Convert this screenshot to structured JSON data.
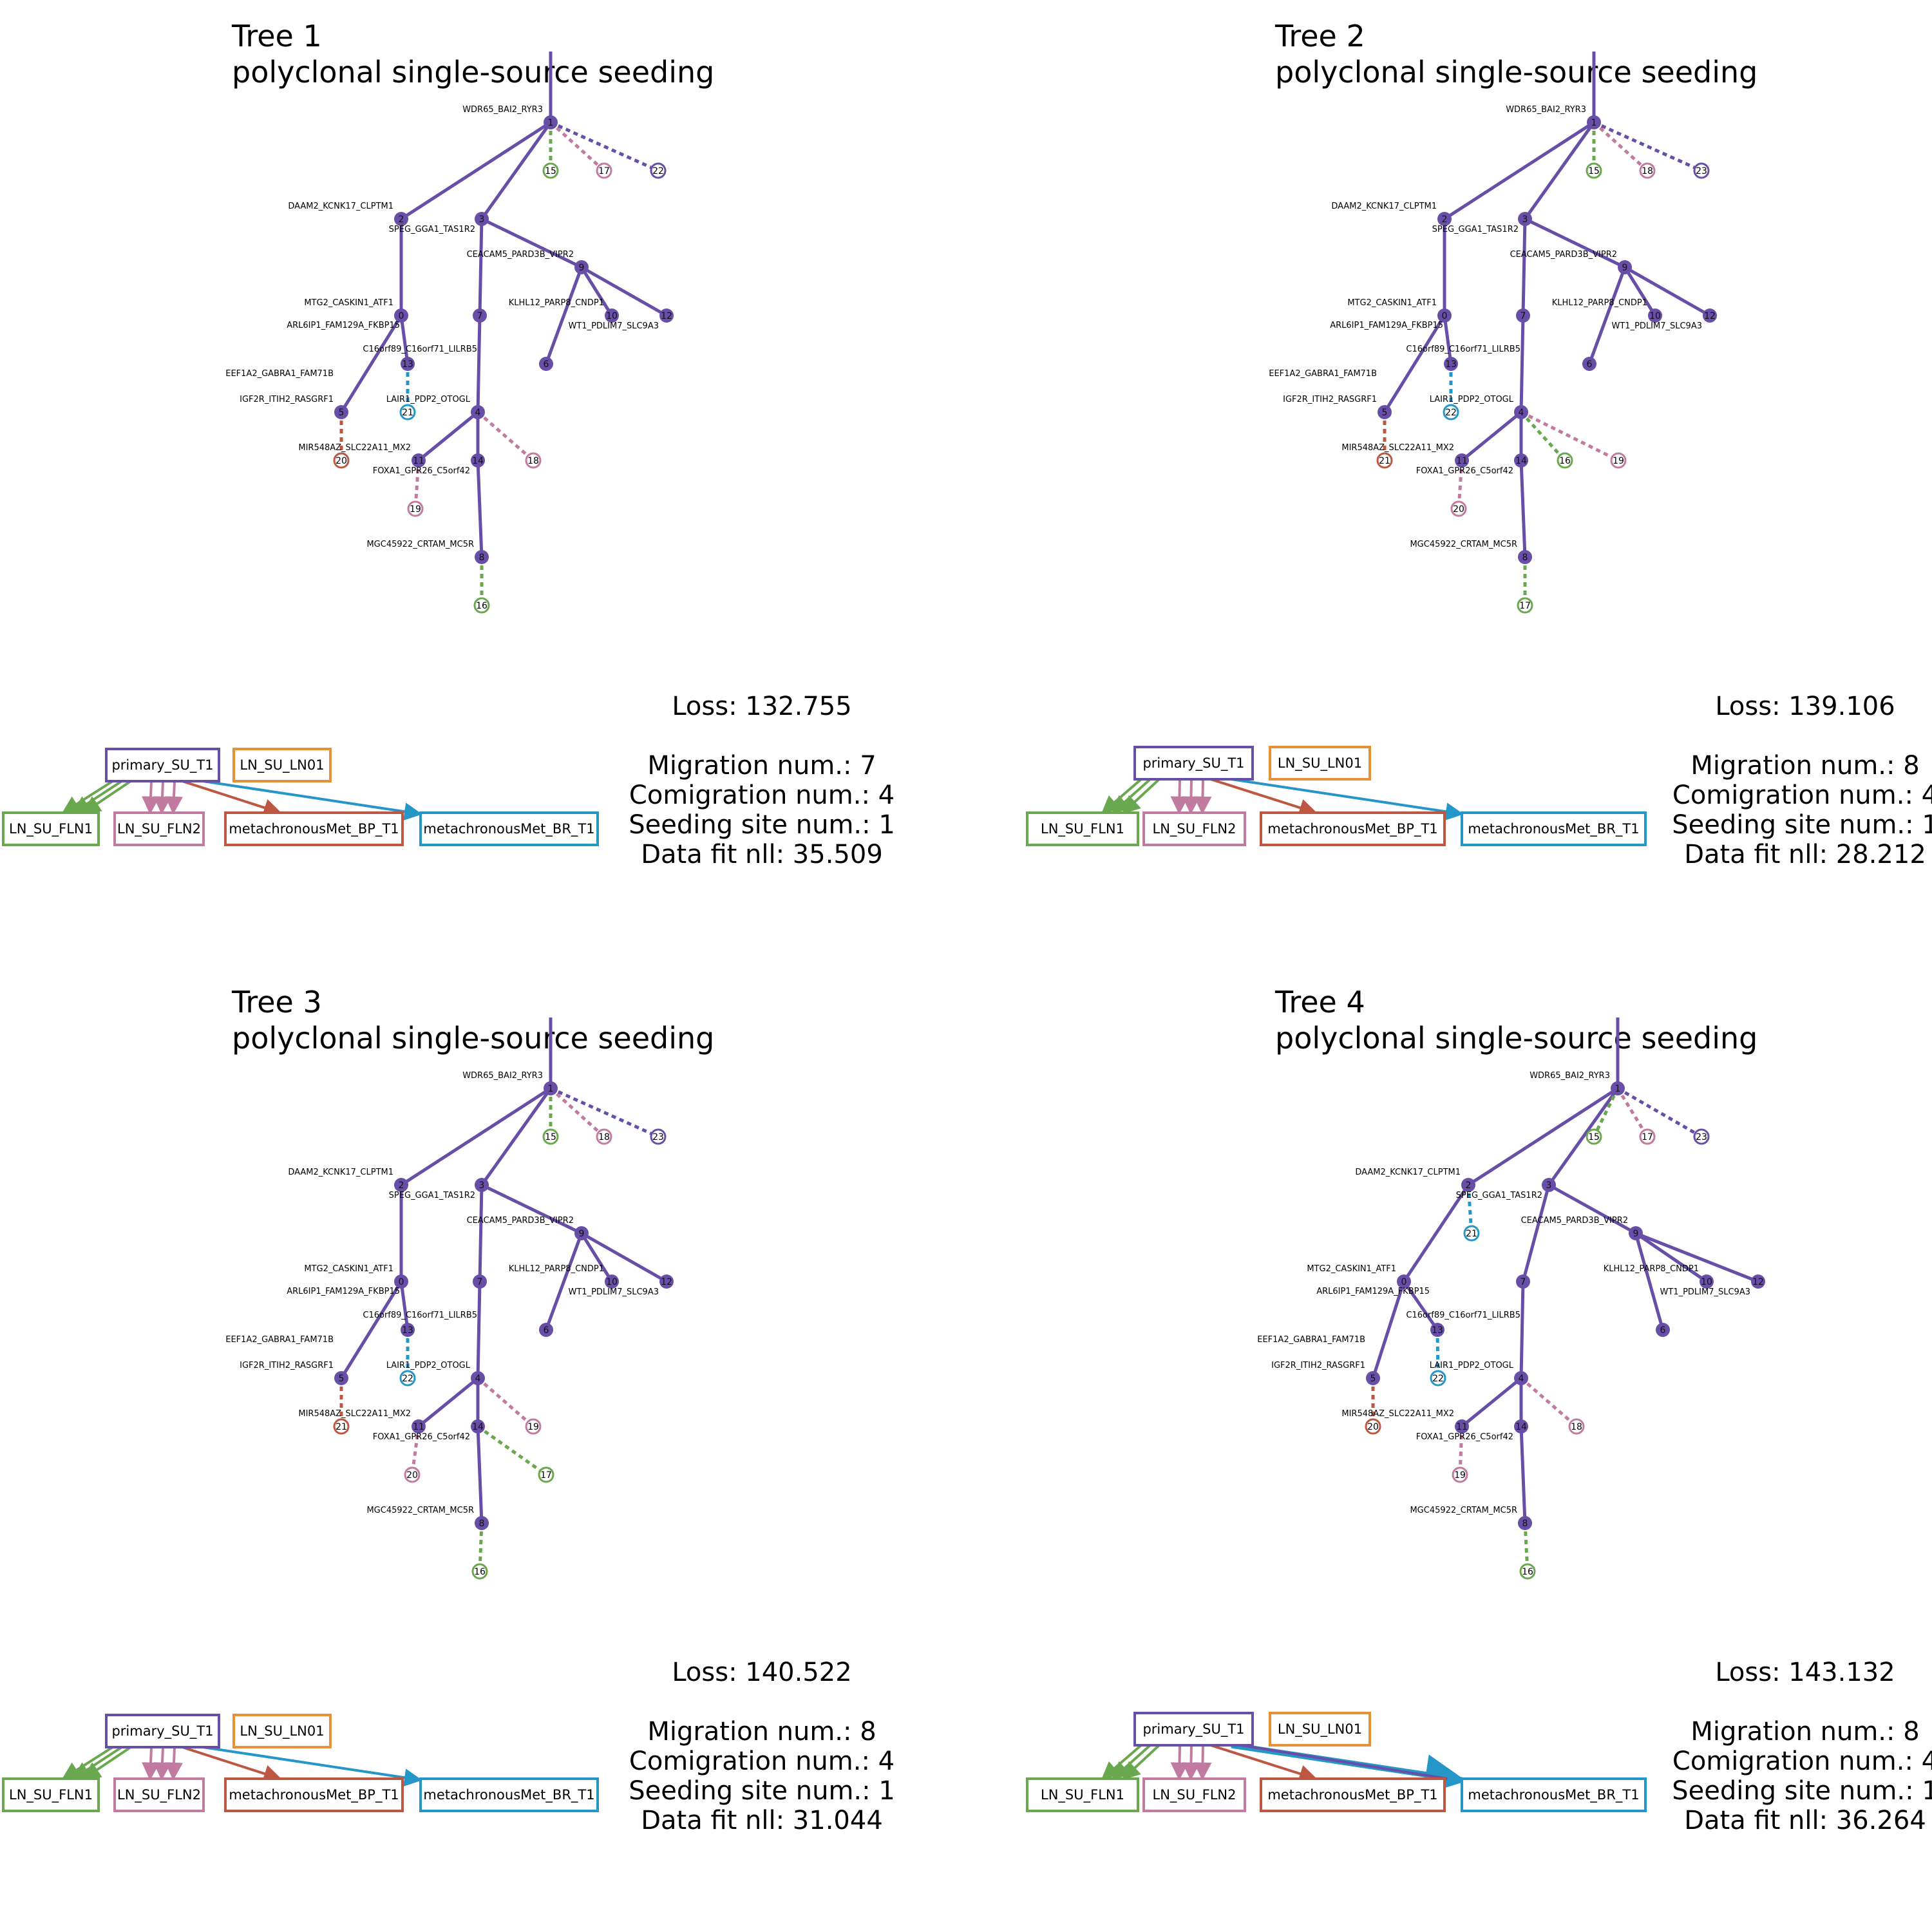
{
  "colors": {
    "primary_SU_T1": "#674ea7",
    "LN_SU_LN01": "#e69138",
    "LN_SU_FLN1": "#6aa84f",
    "LN_SU_FLN2": "#c27ba0",
    "metachronousMet_BP_T1": "#be5742",
    "metachronousMet_BR_T1": "#2496c8"
  },
  "sites": {
    "primary_SU_T1": "primary_SU_T1",
    "LN_SU_LN01": "LN_SU_LN01",
    "LN_SU_FLN1": "LN_SU_FLN1",
    "LN_SU_FLN2": "LN_SU_FLN2",
    "metachronousMet_BP_T1": "metachronousMet_BP_T1",
    "metachronousMet_BR_T1": "metachronousMet_BR_T1"
  },
  "panels": [
    {
      "title": "Tree 1",
      "subtitle": "polyclonal single-source seeding",
      "stats": {
        "loss": "Loss: 132.755",
        "migration": "Migration num.: 7",
        "comigration": "Comigration num.: 4",
        "seeding": "Seeding site num.: 1",
        "nll": "Data fit nll: 35.509"
      },
      "labels": {
        "1": "WDR65_BAI2_RYR3",
        "2": "DAAM2_KCNK17_CLPTM1",
        "3": "SPEG_GGA1_TAS1R2",
        "9": "CEACAM5_PARD3B_VIPR2",
        "0": "MTG2_CASKIN1_ATF1",
        "10": "KLHL12_PARP8_CNDP1",
        "12": "WT1_PDLIM7_SLC9A3",
        "13": "ARL6IP1_FAM129A_FKBP15",
        "5": "EEF1A2_GABRA1_FAM71B",
        "7": "C16orf89_C16orf71_LILRB5",
        "4": "LAIR1_PDP2_OTOGL",
        "s5": "IGF2R_ITIH2_RASGRF1",
        "11": "MIR548AZ_SLC22A11_MX2",
        "14": "FOXA1_GPR26_C5orf42",
        "8": "MGC45922_CRTAM_MC5R"
      },
      "leaves": [
        "15",
        "17",
        "22",
        "21",
        "20",
        "18",
        "19",
        "16"
      ]
    },
    {
      "title": "Tree 2",
      "subtitle": "polyclonal single-source seeding",
      "stats": {
        "loss": "Loss: 139.106",
        "migration": "Migration num.: 8",
        "comigration": "Comigration num.: 4",
        "seeding": "Seeding site num.: 1",
        "nll": "Data fit nll: 28.212"
      },
      "labels": {
        "1": "WDR65_BAI2_RYR3",
        "2": "DAAM2_KCNK17_CLPTM1",
        "3": "SPEG_GGA1_TAS1R2",
        "9": "CEACAM5_PARD3B_VIPR2",
        "0": "MTG2_CASKIN1_ATF1",
        "10": "KLHL12_PARP8_CNDP1",
        "12": "WT1_PDLIM7_SLC9A3",
        "13": "ARL6IP1_FAM129A_FKBP15",
        "5": "EEF1A2_GABRA1_FAM71B",
        "7": "C16orf89_C16orf71_LILRB5",
        "4": "LAIR1_PDP2_OTOGL",
        "s5": "IGF2R_ITIH2_RASGRF1",
        "11": "MIR548AZ_SLC22A11_MX2",
        "14": "FOXA1_GPR26_C5orf42",
        "8": "MGC45922_CRTAM_MC5R"
      },
      "leaves": [
        "15",
        "18",
        "23",
        "22",
        "21",
        "16",
        "19",
        "20",
        "17"
      ]
    },
    {
      "title": "Tree 3",
      "subtitle": "polyclonal single-source seeding",
      "stats": {
        "loss": "Loss: 140.522",
        "migration": "Migration num.: 8",
        "comigration": "Comigration num.: 4",
        "seeding": "Seeding site num.: 1",
        "nll": "Data fit nll: 31.044"
      },
      "labels": {
        "1": "WDR65_BAI2_RYR3",
        "2": "DAAM2_KCNK17_CLPTM1",
        "3": "SPEG_GGA1_TAS1R2",
        "9": "CEACAM5_PARD3B_VIPR2",
        "0": "MTG2_CASKIN1_ATF1",
        "10": "KLHL12_PARP8_CNDP1",
        "12": "WT1_PDLIM7_SLC9A3",
        "13": "ARL6IP1_FAM129A_FKBP15",
        "5": "EEF1A2_GABRA1_FAM71B",
        "7": "C16orf89_C16orf71_LILRB5",
        "4": "LAIR1_PDP2_OTOGL",
        "s5": "IGF2R_ITIH2_RASGRF1",
        "11": "MIR548AZ_SLC22A11_MX2",
        "14": "FOXA1_GPR26_C5orf42",
        "8": "MGC45922_CRTAM_MC5R"
      },
      "leaves": [
        "15",
        "18",
        "23",
        "22",
        "21",
        "19",
        "20",
        "17",
        "16"
      ]
    },
    {
      "title": "Tree 4",
      "subtitle": "polyclonal single-source seeding",
      "stats": {
        "loss": "Loss: 143.132",
        "migration": "Migration num.: 8",
        "comigration": "Comigration num.: 4",
        "seeding": "Seeding site num.: 1",
        "nll": "Data fit nll: 36.264"
      },
      "labels": {
        "1": "WDR65_BAI2_RYR3",
        "2": "DAAM2_KCNK17_CLPTM1",
        "3": "SPEG_GGA1_TAS1R2",
        "9": "CEACAM5_PARD3B_VIPR2",
        "0": "MTG2_CASKIN1_ATF1",
        "10": "KLHL12_PARP8_CNDP1",
        "12": "WT1_PDLIM7_SLC9A3",
        "13": "ARL6IP1_FAM129A_FKBP15",
        "5": "EEF1A2_GABRA1_FAM71B",
        "7": "C16orf89_C16orf71_LILRB5",
        "4": "LAIR1_PDP2_OTOGL",
        "s5": "IGF2R_ITIH2_RASGRF1",
        "11": "MIR548AZ_SLC22A11_MX2",
        "14": "FOXA1_GPR26_C5orf42",
        "8": "MGC45922_CRTAM_MC5R"
      },
      "leaves": [
        "15",
        "17",
        "23",
        "21",
        "22",
        "20",
        "18",
        "19",
        "16"
      ]
    }
  ]
}
